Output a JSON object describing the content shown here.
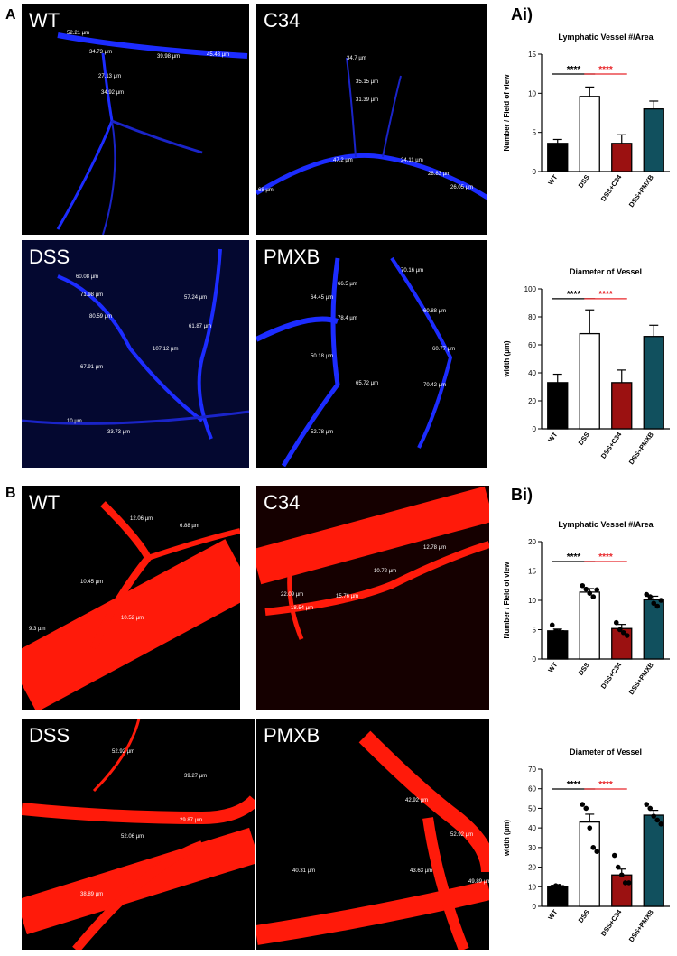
{
  "panels": {
    "a_letter": "A",
    "b_letter": "B",
    "ai_label": "Ai)",
    "bi_label": "Bi)"
  },
  "micrographs": {
    "blue": [
      {
        "label": "WT",
        "measurements": [
          "52.21 µm",
          "34.73 µm",
          "39.98 µm",
          "45.48 µm",
          "27.13 µm",
          "34.92 µm"
        ]
      },
      {
        "label": "C34",
        "measurements": [
          "34.7 µm",
          "35.15 µm",
          "31.39 µm",
          "47.2 µm",
          "24.11 µm",
          "28.83 µm",
          "68 µm",
          "26.05 µm"
        ]
      },
      {
        "label": "DSS",
        "measurements": [
          "60.08 µm",
          "71.98 µm",
          "80.59 µm",
          "57.24 µm",
          "61.87 µm",
          "107.12 µm",
          "67.91 µm",
          "10 µm",
          "33.73 µm"
        ]
      },
      {
        "label": "PMXB",
        "measurements": [
          "66.5 µm",
          "64.45 µm",
          "78.4 µm",
          "70.16 µm",
          "60.88 µm",
          "60.77 µm",
          "50.18 µm",
          "65.72 µm",
          "70.42 µm",
          "52.78 µm"
        ]
      }
    ],
    "red": [
      {
        "label": "WT",
        "measurements": [
          "12.06 µm",
          "6.88 µm",
          "10.45 µm",
          "10.52 µm",
          "9.3 µm"
        ]
      },
      {
        "label": "C34",
        "measurements": [
          "12.78 µm",
          "10.72 µm",
          "22.09 µm",
          "15.76 µm",
          "18.54 µm"
        ]
      },
      {
        "label": "DSS",
        "measurements": [
          "52.92 µm",
          "39.27 µm",
          "52.06 µm",
          "29.87 µm",
          "38.89 µm"
        ]
      },
      {
        "label": "PMXB",
        "measurements": [
          "42.92 µm",
          "52.92 µm",
          "40.31 µm",
          "43.63 µm",
          "49.89 µm"
        ]
      }
    ]
  },
  "colors": {
    "wt": "#000000",
    "dss": "#ffffff",
    "c34": "#9b1111",
    "pmxb": "#11505e",
    "sig_black": "#000000",
    "sig_red": "#e8262a",
    "blue_vessel": "#1c2cff",
    "red_vessel": "#ff1a0a"
  },
  "chart_data": [
    {
      "type": "bar",
      "id": "ai-count",
      "title": "Lymphatic Vessel #/Area",
      "ylabel": "Number / Field of view",
      "categories": [
        "WT",
        "DSS",
        "DSS+C34",
        "DSS+PMXB"
      ],
      "values": [
        3.6,
        9.6,
        3.6,
        8.0
      ],
      "errors": [
        0.5,
        1.2,
        1.1,
        1.0
      ],
      "ylim": [
        0,
        15
      ],
      "yticks": [
        0,
        5,
        10,
        15
      ],
      "significance": [
        {
          "from": 0,
          "to": 1,
          "text": "****",
          "color": "#000000"
        },
        {
          "from": 1,
          "to": 2,
          "text": "****",
          "color": "#e8262a"
        }
      ]
    },
    {
      "type": "bar",
      "id": "ai-diam",
      "title": "Diameter of Vessel",
      "ylabel": "width (µm)",
      "categories": [
        "WT",
        "DSS",
        "DSS+C34",
        "DSS+PMXB"
      ],
      "values": [
        33,
        68,
        33,
        66
      ],
      "errors": [
        6,
        17,
        9,
        8
      ],
      "ylim": [
        0,
        100
      ],
      "yticks": [
        0,
        20,
        40,
        60,
        80,
        100
      ],
      "significance": [
        {
          "from": 0,
          "to": 1,
          "text": "****",
          "color": "#000000"
        },
        {
          "from": 1,
          "to": 2,
          "text": "****",
          "color": "#e8262a"
        }
      ]
    },
    {
      "type": "bar",
      "id": "bi-count",
      "title": "Lymphatic Vessel #/Area",
      "ylabel": "Number / Field of view",
      "categories": [
        "WT",
        "DSS",
        "DSS+C34",
        "DSS+PMXB"
      ],
      "values": [
        4.8,
        11.4,
        5.2,
        10.1
      ],
      "errors": [
        0.3,
        0.6,
        0.7,
        0.6
      ],
      "points": [
        [
          5.8,
          4.7,
          4.6,
          4.5
        ],
        [
          12.5,
          11.9,
          11.2,
          10.6,
          11.8
        ],
        [
          6.2,
          5.0,
          4.5,
          4.0
        ],
        [
          11.0,
          10.6,
          9.5,
          9.0,
          10.0
        ]
      ],
      "ylim": [
        0,
        20
      ],
      "yticks": [
        0,
        5,
        10,
        15,
        20
      ],
      "significance": [
        {
          "from": 0,
          "to": 1,
          "text": "****",
          "color": "#000000"
        },
        {
          "from": 1,
          "to": 2,
          "text": "****",
          "color": "#e8262a"
        }
      ]
    },
    {
      "type": "bar",
      "id": "bi-diam",
      "title": "Diameter of Vessel",
      "ylabel": "width (µm)",
      "categories": [
        "WT",
        "DSS",
        "DSS+C34",
        "DSS+PMXB"
      ],
      "values": [
        10,
        43,
        16,
        46.5
      ],
      "errors": [
        0.5,
        4,
        3,
        2.5
      ],
      "points": [
        [
          9.8,
          10.5,
          10.2,
          9.6
        ],
        [
          52,
          50,
          40,
          30,
          28
        ],
        [
          26,
          20,
          16,
          12,
          12
        ],
        [
          52,
          50,
          46,
          44,
          42
        ]
      ],
      "ylim": [
        0,
        70
      ],
      "yticks": [
        0,
        10,
        20,
        30,
        40,
        50,
        60,
        70
      ],
      "significance": [
        {
          "from": 0,
          "to": 1,
          "text": "****",
          "color": "#000000"
        },
        {
          "from": 1,
          "to": 2,
          "text": "****",
          "color": "#e8262a"
        }
      ]
    }
  ]
}
